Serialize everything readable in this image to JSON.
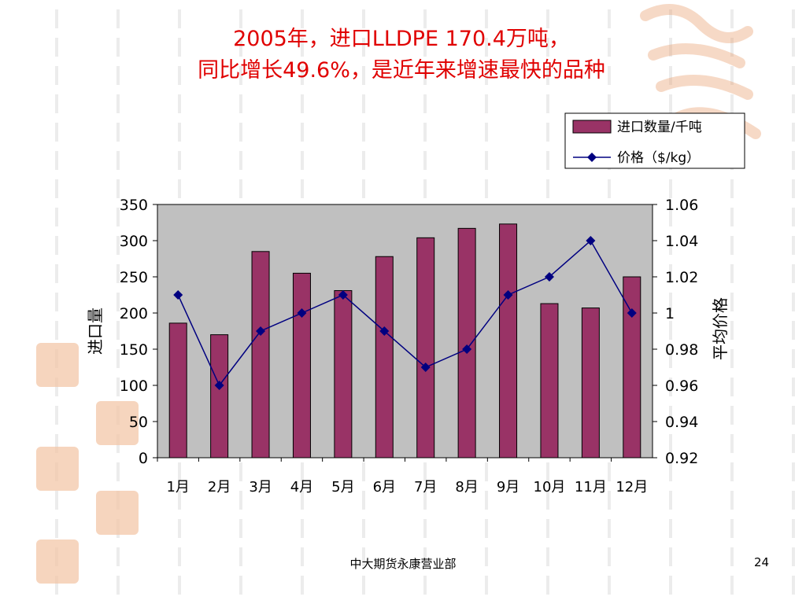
{
  "slide": {
    "title_line1": "2005年，进口LLDPE 170.4万吨，",
    "title_line2": "同比增长49.6%，是近年来增速最快的品种",
    "footer": "中大期货永康营业部",
    "page_number": "24"
  },
  "colors": {
    "title": "#e00000",
    "bar": "#993366",
    "line": "#000080",
    "plot_bg": "#c0c0c0"
  },
  "chart_data": {
    "type": "bar",
    "categories": [
      "1月",
      "2月",
      "3月",
      "4月",
      "5月",
      "6月",
      "7月",
      "8月",
      "9月",
      "10月",
      "11月",
      "12月"
    ],
    "series": [
      {
        "name": "进口数量/千吨",
        "type": "bar",
        "axis": "left",
        "values": [
          186,
          170,
          285,
          255,
          231,
          278,
          304,
          317,
          323,
          213,
          207,
          250
        ]
      },
      {
        "name": "价格（$/kg）",
        "type": "line",
        "axis": "right",
        "values": [
          1.01,
          0.96,
          0.99,
          1.0,
          1.01,
          0.99,
          0.97,
          0.98,
          1.01,
          1.02,
          1.04,
          1.0
        ]
      }
    ],
    "ylabel": "进口量",
    "y2label": "平均价格",
    "ylim": [
      0,
      350
    ],
    "y2lim": [
      0.92,
      1.06
    ],
    "yticks": [
      "0",
      "50",
      "100",
      "150",
      "200",
      "250",
      "300",
      "350"
    ],
    "y2ticks": [
      "0.92",
      "0.94",
      "0.96",
      "0.98",
      "1",
      "1.02",
      "1.04",
      "1.06"
    ],
    "grid": false,
    "legend_position": "top-right"
  }
}
